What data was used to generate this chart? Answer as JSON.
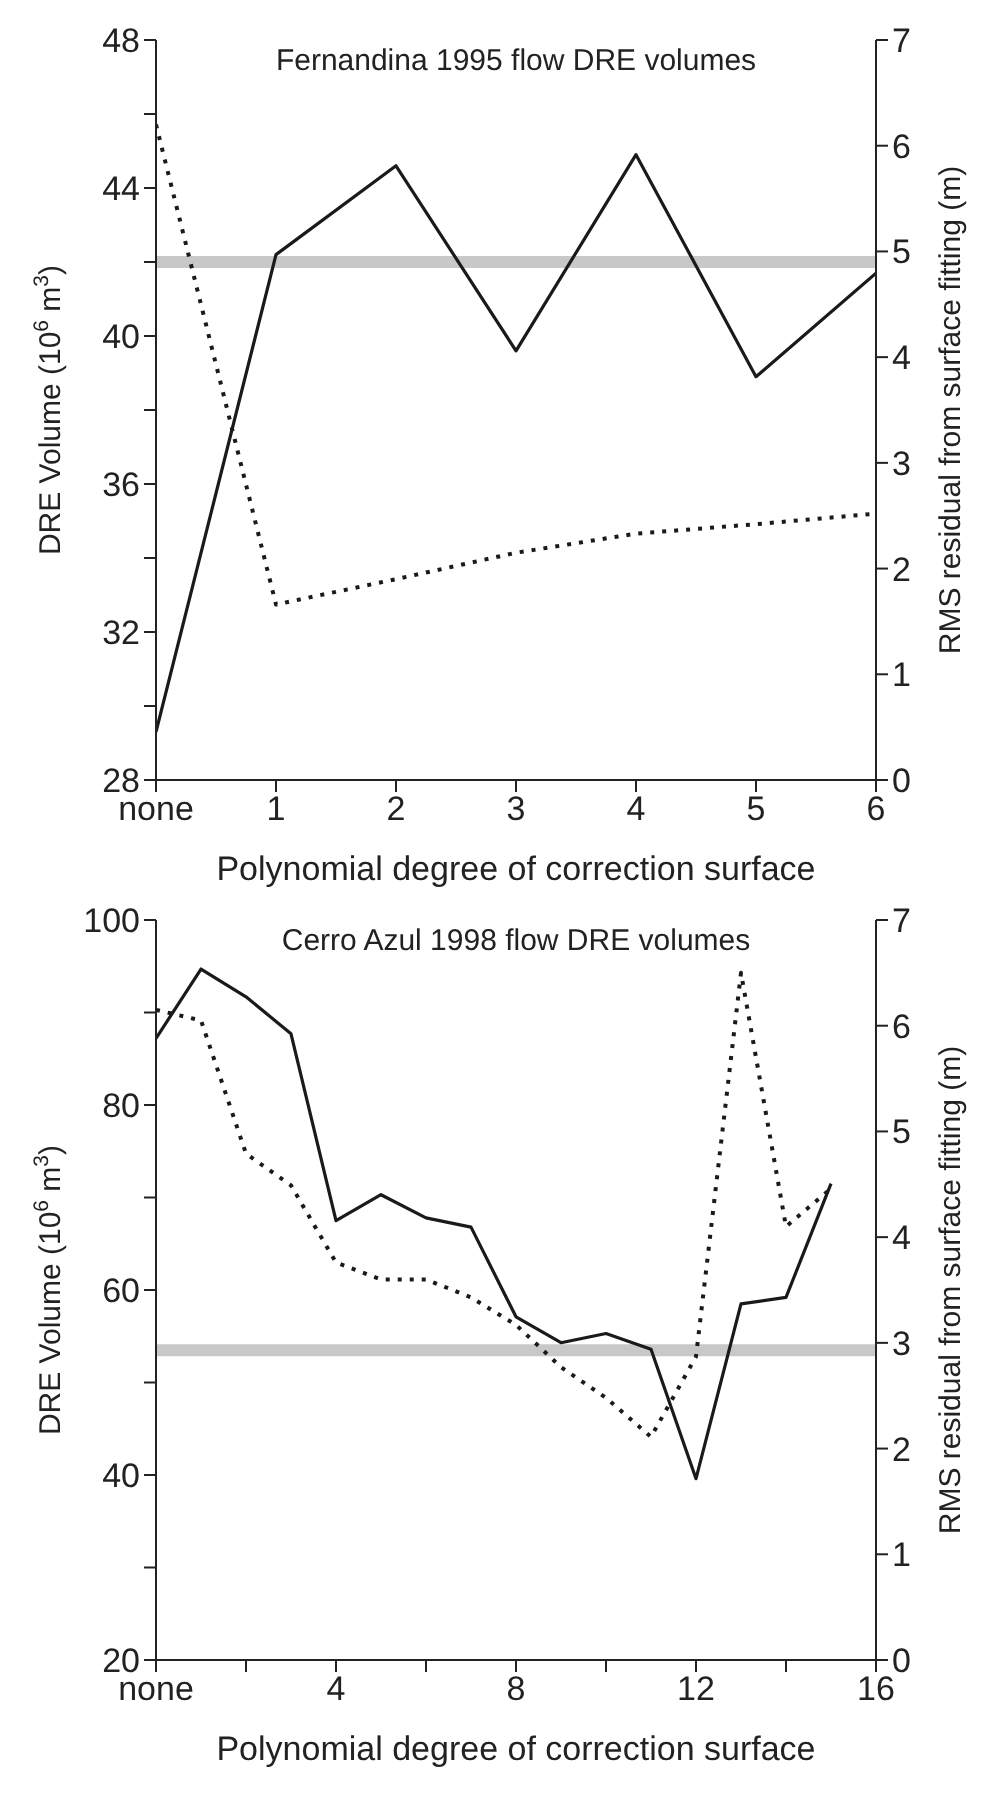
{
  "chart_data": [
    {
      "type": "line",
      "title": "Fernandina 1995 flow DRE volumes",
      "xlabel": "Polynomial degree of correction surface",
      "ylabel": "DRE Volume (10$^{6}$ m$^{3}$)",
      "y2label": "RMS residual from surface fitting (m)",
      "x": [
        0,
        1,
        2,
        3,
        4,
        5,
        6
      ],
      "series": [
        {
          "color": "#1a1a1a",
          "values": [
            29.3,
            42.2,
            44.6,
            39.6,
            44.9,
            38.9,
            41.7
          ],
          "line_style": "solid"
        },
        {
          "color": "#1a1a1a",
          "values": [
            6.2,
            1.66,
            1.9,
            2.15,
            2.33,
            2.42,
            2.52
          ],
          "axis": "y2",
          "line_style": "dotted"
        }
      ],
      "xlim": [
        0,
        6
      ],
      "xticks": [
        {
          "value": 0,
          "label": "none"
        },
        1,
        2,
        3,
        4,
        5,
        6
      ],
      "ylim": [
        28,
        48
      ],
      "yticks": [
        28,
        {
          "value": 30,
          "label": null
        },
        32,
        {
          "value": 34,
          "label": null
        },
        36,
        {
          "value": 38,
          "label": null
        },
        40,
        {
          "value": 42,
          "label": null
        },
        44,
        {
          "value": 46,
          "label": null
        },
        48
      ],
      "y2lim": [
        0,
        7
      ],
      "y2ticks": [
        0,
        1,
        2,
        3,
        4,
        5,
        6,
        7
      ],
      "ref_lines": [
        {
          "axis": "y",
          "value": 42,
          "color": "#c8c8c8"
        }
      ]
    },
    {
      "type": "line",
      "title": "Cerro Azul 1998 flow DRE volumes",
      "xlabel": "Polynomial degree of correction surface",
      "ylabel": "DRE Volume (10$^{6}$ m$^{3}$)",
      "y2label": "RMS residual from surface fitting (m)",
      "x": [
        0,
        1,
        2,
        3,
        4,
        5,
        6,
        7,
        8,
        9,
        10,
        11,
        12,
        13,
        14,
        15
      ],
      "series": [
        {
          "color": "#1a1a1a",
          "values": [
            87.2,
            94.7,
            91.7,
            87.7,
            67.5,
            70.3,
            67.8,
            66.8,
            57.1,
            54.3,
            55.3,
            53.6,
            39.6,
            58.5,
            59.2,
            71.5
          ],
          "line_style": "solid"
        },
        {
          "color": "#1a1a1a",
          "values": [
            6.15,
            6.05,
            4.79,
            4.49,
            3.76,
            3.6,
            3.6,
            3.43,
            3.17,
            2.77,
            2.48,
            2.11,
            2.87,
            6.5,
            4.1,
            4.46
          ],
          "axis": "y2",
          "line_style": "dotted"
        }
      ],
      "xlim": [
        0,
        16
      ],
      "xticks": [
        {
          "value": 0,
          "label": "none"
        },
        {
          "value": 2,
          "label": null
        },
        4,
        {
          "value": 6,
          "label": null
        },
        8,
        {
          "value": 10,
          "label": null
        },
        12,
        {
          "value": 14,
          "label": null
        },
        16
      ],
      "ylim": [
        20,
        100
      ],
      "yticks": [
        20,
        {
          "value": 30,
          "label": null
        },
        40,
        {
          "value": 50,
          "label": null
        },
        60,
        {
          "value": 70,
          "label": null
        },
        80,
        {
          "value": 90,
          "label": null
        },
        100
      ],
      "y2lim": [
        0,
        7
      ],
      "y2ticks": [
        0,
        1,
        2,
        3,
        4,
        5,
        6,
        7
      ],
      "ref_lines": [
        {
          "axis": "y",
          "value": 53.5,
          "color": "#c8c8c8"
        }
      ]
    }
  ]
}
